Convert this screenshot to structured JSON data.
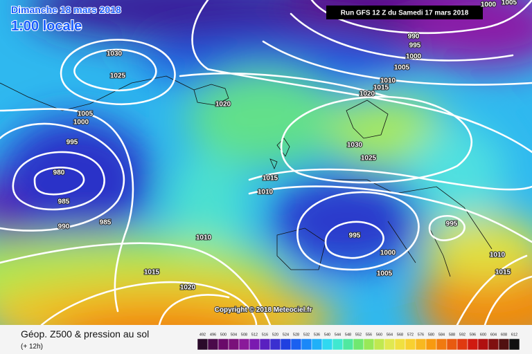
{
  "header": {
    "date": "Dimanche 18 mars 2018",
    "time": "1:00 locale",
    "run": "Run GFS 12 Z du Samedi 17 mars 2018"
  },
  "footer": {
    "copyright": "Copyright © 2018 Meteociel.fr",
    "title": "Géop. Z500 & pression au sol",
    "step": "(+ 12h)"
  },
  "legend": {
    "levels": [
      492,
      496,
      500,
      504,
      508,
      512,
      516,
      520,
      524,
      528,
      532,
      536,
      540,
      544,
      548,
      552,
      556,
      560,
      564,
      568,
      572,
      576,
      580,
      584,
      588,
      592,
      596,
      600,
      604,
      608,
      612
    ],
    "colors": [
      "#2a0a2a",
      "#4a0a4a",
      "#6a0a6a",
      "#7a107a",
      "#8a1a9a",
      "#7a1ab0",
      "#5a20c0",
      "#3a30d0",
      "#2040e0",
      "#1a60f0",
      "#1a88f8",
      "#20b0f8",
      "#30d8f0",
      "#40e8d0",
      "#50e8a0",
      "#70e870",
      "#98e858",
      "#c0e850",
      "#e0e850",
      "#f0e040",
      "#f8d030",
      "#f8b820",
      "#f89a10",
      "#f07a10",
      "#e85a10",
      "#e03a10",
      "#d01a10",
      "#b01010",
      "#801010",
      "#501010",
      "#101010"
    ]
  },
  "isobars": [
    "1030",
    "1025",
    "1020",
    "1005",
    "1000",
    "995",
    "980",
    "985",
    "990",
    "985",
    "1010",
    "1015",
    "1020",
    "1015",
    "1010",
    "995",
    "1000",
    "1005",
    "995",
    "1010",
    "1015",
    "1030",
    "1025",
    "990",
    "995",
    "1000",
    "1005",
    "1010",
    "1015",
    "1020",
    "1000",
    "1005"
  ]
}
